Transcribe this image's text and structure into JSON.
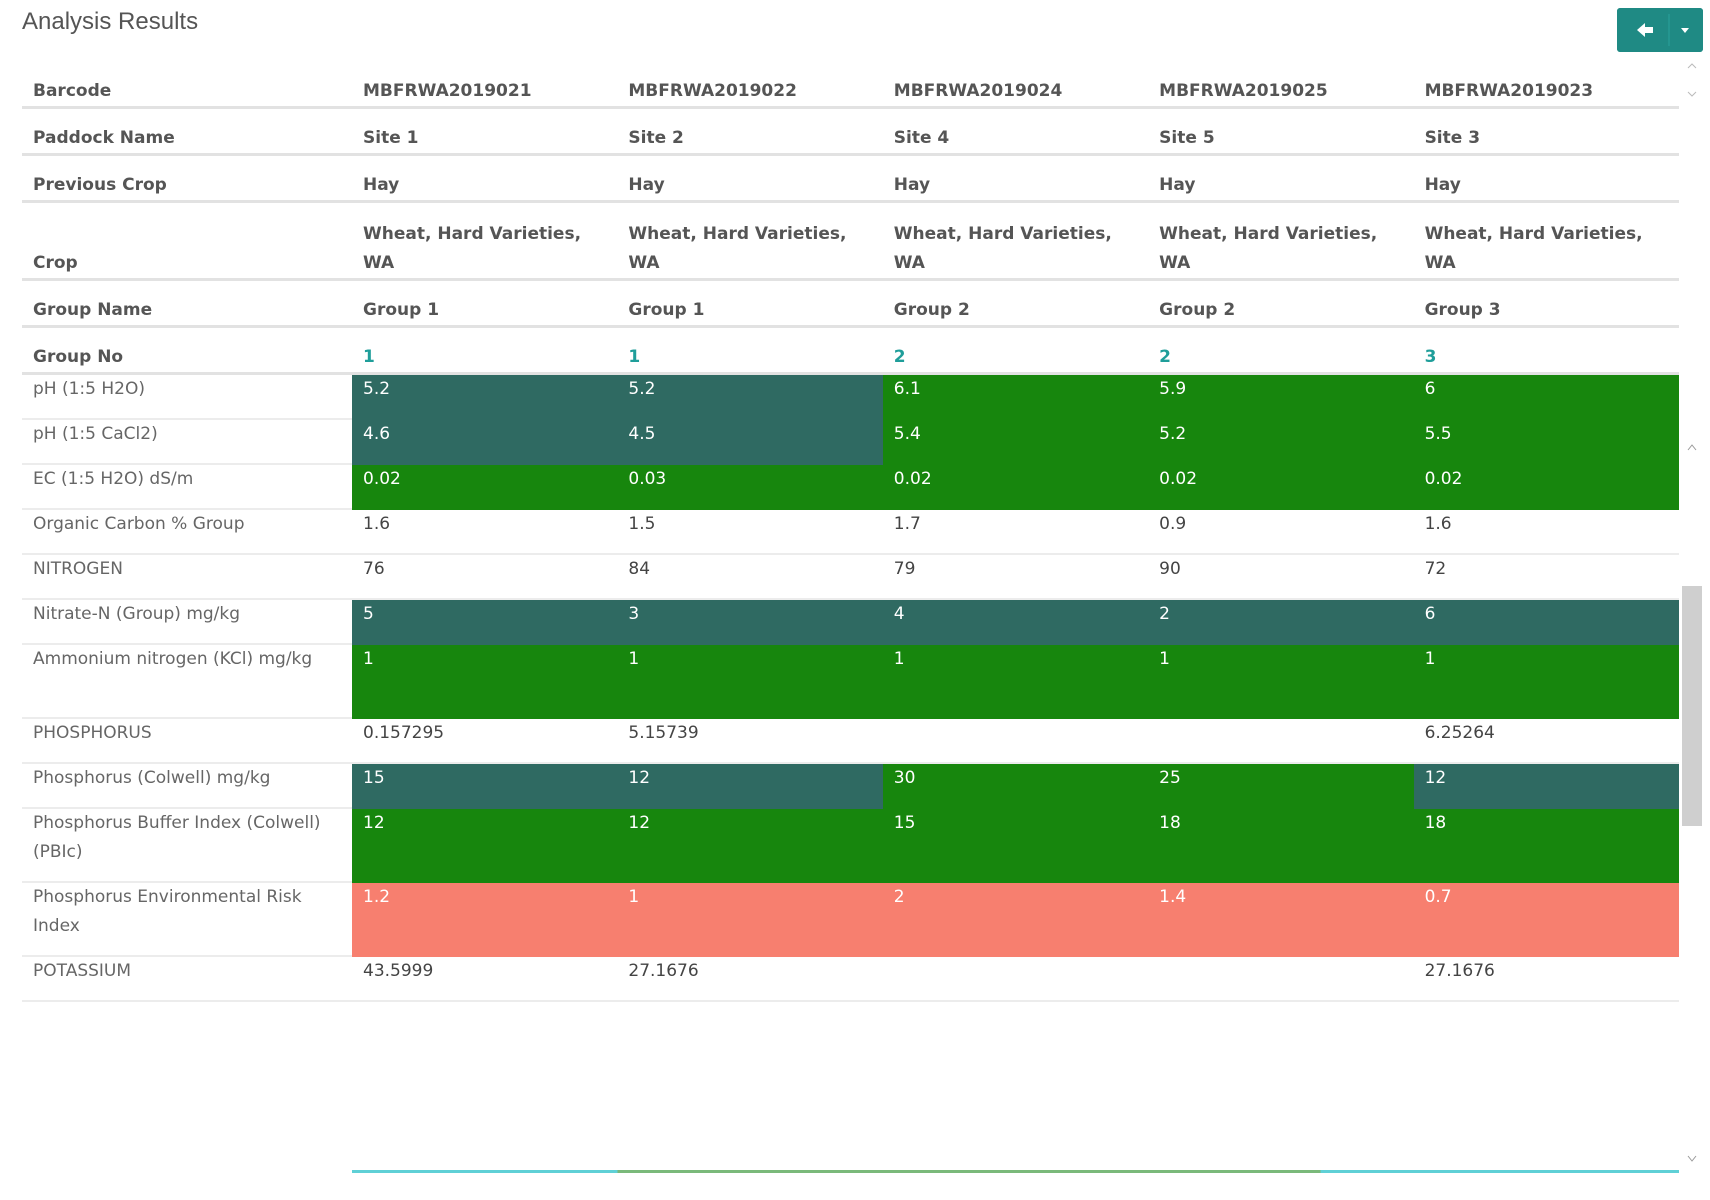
{
  "title": "Analysis Results",
  "header_rows": [
    {
      "label": "Barcode",
      "cells": [
        "MBFRWA2019021",
        "MBFRWA2019022",
        "MBFRWA2019024",
        "MBFRWA2019025",
        "MBFRWA2019023"
      ]
    },
    {
      "label": "Paddock Name",
      "cells": [
        "Site 1",
        "Site 2",
        "Site 4",
        "Site 5",
        "Site 3"
      ]
    },
    {
      "label": "Previous Crop",
      "cells": [
        "Hay",
        "Hay",
        "Hay",
        "Hay",
        "Hay"
      ]
    },
    {
      "label": "Crop",
      "cells": [
        "Wheat, Hard Varieties, WA",
        "Wheat, Hard Varieties, WA",
        "Wheat, Hard Varieties, WA",
        "Wheat, Hard Varieties, WA",
        "Wheat, Hard Varieties, WA"
      ]
    },
    {
      "label": "Group Name",
      "cells": [
        "Group 1",
        "Group 1",
        "Group 2",
        "Group 2",
        "Group 3"
      ]
    },
    {
      "label": "Group No",
      "cells": [
        "1",
        "1",
        "2",
        "2",
        "3"
      ],
      "color": "#1f9e9a"
    }
  ],
  "result_rows": [
    {
      "label": "pH (1:5 H2O)",
      "values": [
        "5.2",
        "5.2",
        "6.1",
        "5.9",
        "6"
      ],
      "colors": [
        "#2f6a62",
        "#2f6a62",
        "#17860d",
        "#17860d",
        "#17860d"
      ]
    },
    {
      "label": "pH (1:5 CaCl2)",
      "values": [
        "4.6",
        "4.5",
        "5.4",
        "5.2",
        "5.5"
      ],
      "colors": [
        "#2f6a62",
        "#2f6a62",
        "#17860d",
        "#17860d",
        "#17860d"
      ]
    },
    {
      "label": "EC (1:5 H2O) dS/m",
      "values": [
        "0.02",
        "0.03",
        "0.02",
        "0.02",
        "0.02"
      ],
      "colors": [
        "#17860d",
        "#17860d",
        "#17860d",
        "#17860d",
        "#17860d"
      ]
    },
    {
      "label": "Organic Carbon % Group",
      "values": [
        "1.6",
        "1.5",
        "1.7",
        "0.9",
        "1.6"
      ],
      "colors": [
        null,
        null,
        null,
        null,
        null
      ]
    },
    {
      "label": "NITROGEN",
      "values": [
        "76",
        "84",
        "79",
        "90",
        "72"
      ],
      "colors": [
        null,
        null,
        null,
        null,
        null
      ]
    },
    {
      "label": "Nitrate-N (Group) mg/kg",
      "values": [
        "5",
        "3",
        "4",
        "2",
        "6"
      ],
      "colors": [
        "#2f6a62",
        "#2f6a62",
        "#2f6a62",
        "#2f6a62",
        "#2f6a62"
      ]
    },
    {
      "label": "Ammonium nitrogen (KCl) mg/kg",
      "values": [
        "1",
        "1",
        "1",
        "1",
        "1"
      ],
      "colors": [
        "#17860d",
        "#17860d",
        "#17860d",
        "#17860d",
        "#17860d"
      ]
    },
    {
      "label": "PHOSPHORUS",
      "values": [
        "0.157295",
        "5.15739",
        null,
        null,
        "6.25264"
      ],
      "colors": [
        null,
        null,
        null,
        null,
        null
      ]
    },
    {
      "label": "Phosphorus (Colwell) mg/kg",
      "values": [
        "15",
        "12",
        "30",
        "25",
        "12"
      ],
      "colors": [
        "#2f6a62",
        "#2f6a62",
        "#17860d",
        "#17860d",
        "#2f6a62"
      ]
    },
    {
      "label": "Phosphorus Buffer Index (Colwell) (PBIc)",
      "values": [
        "12",
        "12",
        "15",
        "18",
        "18"
      ],
      "colors": [
        "#17860d",
        "#17860d",
        "#17860d",
        "#17860d",
        "#17860d"
      ]
    },
    {
      "label": "Phosphorus Environmental Risk Index",
      "values": [
        "1.2",
        "1",
        "2",
        "1.4",
        "0.7"
      ],
      "colors": [
        "#f77f6f",
        "#f77f6f",
        "#f77f6f",
        "#f77f6f",
        "#f77f6f"
      ]
    },
    {
      "label": "POTASSIUM",
      "values": [
        "43.5999",
        "27.1676",
        null,
        null,
        "27.1676"
      ],
      "colors": [
        null,
        null,
        null,
        null,
        null
      ]
    }
  ]
}
